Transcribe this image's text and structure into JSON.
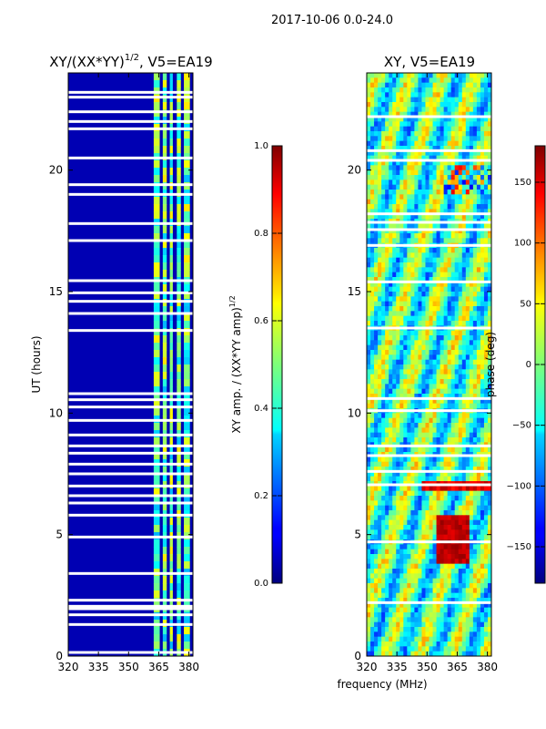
{
  "figure_title": "2017-10-06 0.0-24.0",
  "chart_data": [
    {
      "type": "heatmap",
      "title": "XY/(XX*YY)^1/2, V5=EA19",
      "title_main": "XY/(XX*YY)",
      "title_sup": "1/2",
      "title_tail": ", V5=EA19",
      "xlabel": "",
      "ylabel": "UT (hours)",
      "xlim": [
        320,
        382
      ],
      "ylim": [
        0,
        24
      ],
      "xticks": [
        320,
        335,
        350,
        365,
        380
      ],
      "yticks": [
        0,
        5,
        10,
        15,
        20
      ],
      "colorbar": {
        "label_main": "XY amp. / (XX*YY amp)",
        "label_sup": "1/2",
        "range": [
          0.0,
          1.0
        ],
        "ticks": [
          "0.0",
          "0.2",
          "0.4",
          "0.6",
          "0.8",
          "1.0"
        ],
        "tick_values": [
          0.0,
          0.2,
          0.4,
          0.6,
          0.8,
          1.0
        ]
      },
      "white_gaps_hours": [
        0.15,
        1.3,
        1.7,
        1.95,
        2.05,
        2.3,
        3.4,
        4.9,
        5.8,
        6.3,
        6.6,
        7.0,
        7.5,
        7.9,
        8.35,
        8.65,
        9.1,
        9.7,
        10.25,
        10.55,
        10.8,
        13.4,
        14.1,
        14.6,
        14.95,
        15.45,
        17.1,
        17.8,
        19.0,
        19.4,
        20.5,
        21.7,
        22.0,
        22.4,
        23.0,
        23.2
      ],
      "band_regions_mhz": [
        [
          362.5,
          365.5
        ],
        [
          367,
          369
        ],
        [
          370.5,
          372
        ],
        [
          374,
          376
        ],
        [
          377.5,
          380.5
        ]
      ],
      "description_values": {
        "background_amp": 0.05,
        "band_amp_low": 0.3,
        "band_amp_high": 0.65
      }
    },
    {
      "type": "heatmap",
      "title": "XY, V5=EA19",
      "xlabel": "frequency (MHz)",
      "ylabel": "",
      "xlim": [
        320,
        382
      ],
      "ylim": [
        0,
        24
      ],
      "xticks": [
        320,
        335,
        350,
        365,
        380
      ],
      "yticks": [
        0,
        5,
        10,
        15,
        20
      ],
      "colorbar": {
        "label": "phase (deg)",
        "range": [
          -180,
          180
        ],
        "ticks": [
          "150",
          "100",
          "50",
          "0",
          "−50",
          "−100",
          "−150"
        ],
        "tick_values": [
          150,
          100,
          50,
          0,
          -50,
          -100,
          -150
        ]
      },
      "white_gaps_hours": [
        2.2,
        4.7,
        7.05,
        7.6,
        8.25,
        8.65,
        10.1,
        10.6,
        13.5,
        15.4,
        16.9,
        17.55,
        17.85,
        18.2,
        20.4,
        20.8,
        22.2
      ]
    }
  ]
}
